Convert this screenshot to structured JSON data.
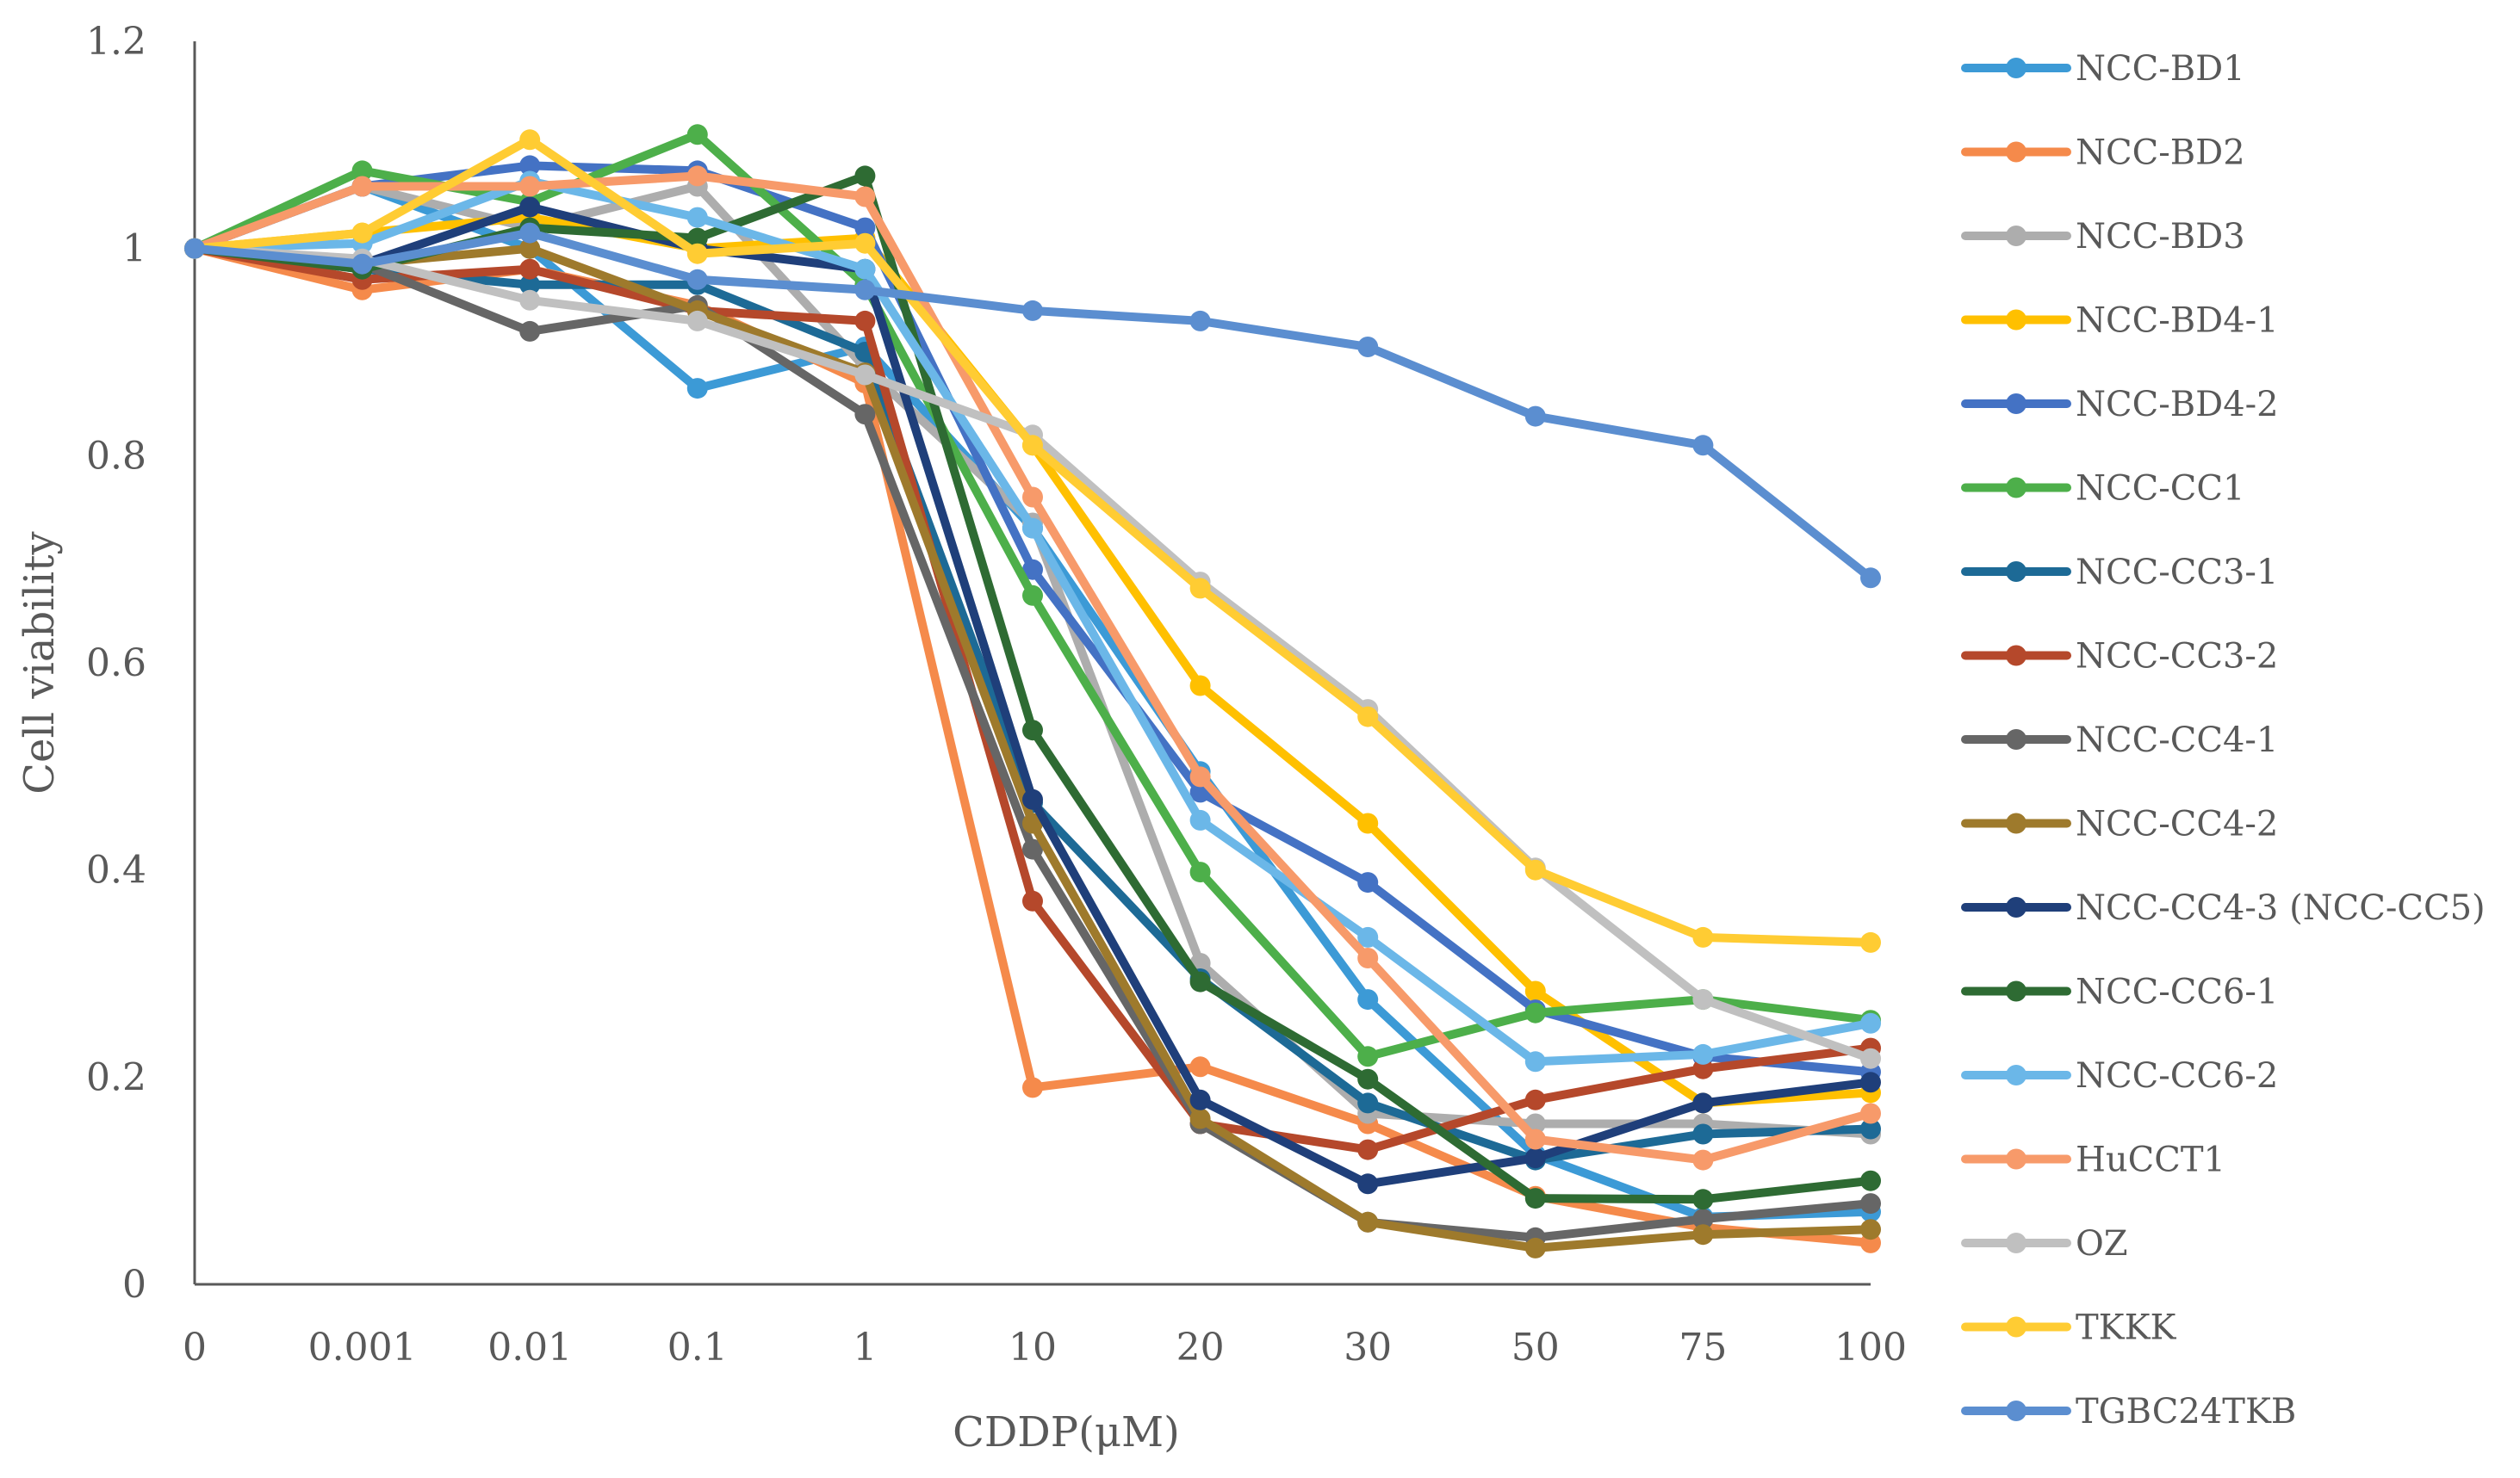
{
  "chart_data": {
    "type": "line",
    "title": "",
    "xlabel": "CDDP(μM)",
    "ylabel": "Cell viability",
    "ylim": [
      0,
      1.2
    ],
    "yticks": [
      "0",
      "0.2",
      "0.4",
      "0.6",
      "0.8",
      "1",
      "1.2"
    ],
    "categories": [
      "0",
      "0.001",
      "0.01",
      "0.1",
      "1",
      "10",
      "20",
      "30",
      "50",
      "75",
      "100"
    ],
    "legend_position": "right",
    "series": [
      {
        "name": "NCC-BD1",
        "color": "#3C9AD6",
        "values": [
          1.0,
          1.06,
          1.0,
          0.865,
          0.905,
          0.73,
          0.495,
          0.275,
          0.125,
          0.065,
          0.07
        ]
      },
      {
        "name": "NCC-BD2",
        "color": "#F58A4B",
        "values": [
          1.0,
          0.96,
          0.98,
          0.945,
          0.87,
          0.19,
          0.21,
          0.155,
          0.085,
          0.055,
          0.04
        ]
      },
      {
        "name": "NCC-BD3",
        "color": "#ADADAD",
        "values": [
          1.0,
          1.06,
          1.02,
          1.06,
          0.885,
          0.735,
          0.31,
          0.165,
          0.155,
          0.155,
          0.145
        ]
      },
      {
        "name": "NCC-BD4-1",
        "color": "#FFC000",
        "values": [
          1.0,
          1.015,
          1.03,
          1.0,
          1.01,
          0.81,
          0.578,
          0.445,
          0.283,
          0.175,
          0.185
        ]
      },
      {
        "name": "NCC-BD4-2",
        "color": "#4472C4",
        "values": [
          1.0,
          1.06,
          1.08,
          1.075,
          1.02,
          0.69,
          0.475,
          0.388,
          0.265,
          0.22,
          0.205
        ]
      },
      {
        "name": "NCC-CC1",
        "color": "#4DAF4A",
        "values": [
          1.0,
          1.075,
          1.045,
          1.11,
          0.965,
          0.665,
          0.398,
          0.22,
          0.262,
          0.275,
          0.255
        ]
      },
      {
        "name": "NCC-CC3-1",
        "color": "#1D6A96",
        "values": [
          1.0,
          0.98,
          0.965,
          0.965,
          0.9,
          0.465,
          0.295,
          0.175,
          0.12,
          0.145,
          0.15
        ]
      },
      {
        "name": "NCC-CC3-2",
        "color": "#B5482B",
        "values": [
          1.0,
          0.97,
          0.98,
          0.94,
          0.93,
          0.37,
          0.155,
          0.13,
          0.178,
          0.208,
          0.228
        ]
      },
      {
        "name": "NCC-CC4-1",
        "color": "#666666",
        "values": [
          1.0,
          0.985,
          0.92,
          0.945,
          0.84,
          0.42,
          0.155,
          0.06,
          0.045,
          0.063,
          0.078
        ]
      },
      {
        "name": "NCC-CC4-2",
        "color": "#9E7A2C",
        "values": [
          1.0,
          0.985,
          1.0,
          0.94,
          0.88,
          0.445,
          0.16,
          0.06,
          0.035,
          0.048,
          0.053
        ]
      },
      {
        "name": "NCC-CC4-3 (NCC-CC5)",
        "color": "#1F3F7A",
        "values": [
          1.0,
          0.985,
          1.04,
          1.0,
          0.98,
          0.468,
          0.178,
          0.097,
          0.122,
          0.175,
          0.195
        ]
      },
      {
        "name": "NCC-CC6-1",
        "color": "#2E6B33",
        "values": [
          1.0,
          0.98,
          1.02,
          1.01,
          1.07,
          0.535,
          0.292,
          0.198,
          0.083,
          0.082,
          0.1
        ]
      },
      {
        "name": "NCC-CC6-2",
        "color": "#6BB7E8",
        "values": [
          1.0,
          1.005,
          1.065,
          1.03,
          0.98,
          0.73,
          0.448,
          0.335,
          0.215,
          0.222,
          0.252
        ]
      },
      {
        "name": "HuCCT1",
        "color": "#F79A6A",
        "values": [
          1.0,
          1.06,
          1.06,
          1.07,
          1.05,
          0.76,
          0.49,
          0.315,
          0.14,
          0.12,
          0.165
        ]
      },
      {
        "name": "OZ",
        "color": "#C0C0C0",
        "values": [
          1.0,
          0.99,
          0.95,
          0.93,
          0.878,
          0.82,
          0.678,
          0.555,
          0.402,
          0.275,
          0.218
        ]
      },
      {
        "name": "TKKK",
        "color": "#FFCC33",
        "values": [
          1.0,
          1.015,
          1.105,
          0.995,
          1.005,
          0.81,
          0.672,
          0.548,
          0.4,
          0.335,
          0.33
        ]
      },
      {
        "name": "TGBC24TKB",
        "color": "#5B8ED0",
        "values": [
          1.0,
          0.985,
          1.015,
          0.97,
          0.96,
          0.94,
          0.93,
          0.905,
          0.838,
          0.81,
          0.682
        ]
      }
    ]
  }
}
